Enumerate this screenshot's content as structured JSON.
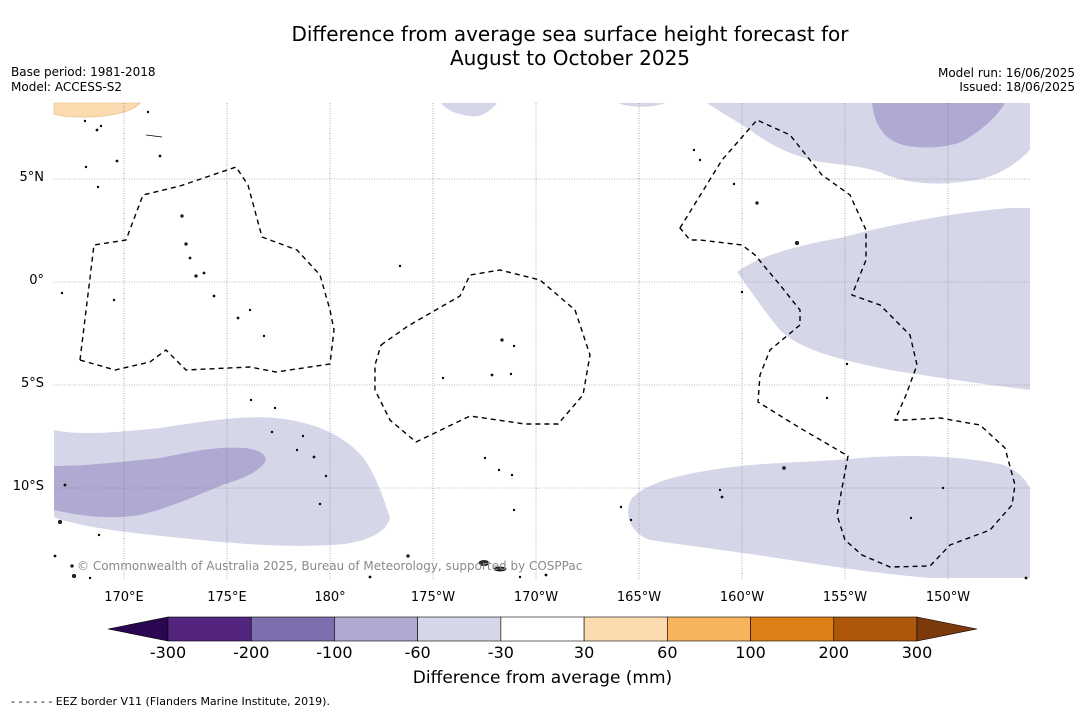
{
  "title_line1": "Difference from average sea surface height forecast for",
  "title_line2": "August to October 2025",
  "base_period": "Base period: 1981-2018",
  "model": "Model: ACCESS-S2",
  "model_run": "Model run: 16/06/2025",
  "issued": "Issued: 18/06/2025",
  "copyright": "© Commonwealth of Australia 2025, Bureau of Meteorology, supported by COSPPac",
  "lat_labels": [
    "5°N",
    "0°",
    "5°S",
    "10°S"
  ],
  "lon_labels": [
    "170°E",
    "175°E",
    "180°",
    "175°W",
    "170°W",
    "165°W",
    "160°W",
    "155°W",
    "150°W"
  ],
  "colorbar": {
    "title": "Difference from average (mm)",
    "ticks": [
      "-300",
      "-200",
      "-100",
      "-60",
      "-30",
      "30",
      "60",
      "100",
      "200",
      "300"
    ],
    "colors": [
      "#53257f",
      "#7d6fad",
      "#b0aad2",
      "#d6d6e9",
      "#ffffff",
      "#fcdbb0",
      "#f8b45c",
      "#de7e17",
      "#ad570b"
    ],
    "extend_low_color": "#2a0750",
    "extend_high_color": "#7c390c"
  },
  "legend": "- -  - -  - - EEZ border V11 (Flanders Marine Institute, 2019)."
}
